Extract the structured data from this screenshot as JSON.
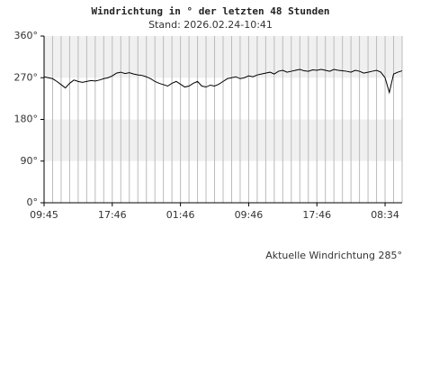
{
  "chart_data": {
    "type": "line",
    "title": "Windrichtung in ° der letzten 48 Stunden",
    "subtitle": "Stand: 2026.02.24-10:41",
    "annotation": "Aktuelle Windrichtung 285°",
    "categories": [
      "09:45",
      null,
      null,
      null,
      null,
      null,
      null,
      null,
      null,
      null,
      null,
      null,
      null,
      null,
      null,
      null,
      "17:46",
      null,
      null,
      null,
      null,
      null,
      null,
      null,
      null,
      null,
      null,
      null,
      null,
      null,
      null,
      null,
      "01:46",
      null,
      null,
      null,
      null,
      null,
      null,
      null,
      null,
      null,
      null,
      null,
      null,
      null,
      null,
      null,
      "09:46",
      null,
      null,
      null,
      null,
      null,
      null,
      null,
      null,
      null,
      null,
      null,
      null,
      null,
      null,
      null,
      "17:46",
      null,
      null,
      null,
      null,
      null,
      null,
      null,
      null,
      null,
      null,
      null,
      null,
      null,
      null,
      null,
      "08:34",
      null,
      null,
      null,
      null
    ],
    "values": [
      272,
      270,
      268,
      262,
      255,
      248,
      258,
      265,
      262,
      260,
      262,
      264,
      263,
      265,
      268,
      270,
      274,
      280,
      282,
      279,
      281,
      278,
      276,
      275,
      272,
      268,
      262,
      258,
      255,
      252,
      258,
      262,
      256,
      250,
      252,
      258,
      262,
      252,
      250,
      254,
      252,
      256,
      262,
      268,
      270,
      272,
      268,
      270,
      274,
      272,
      276,
      278,
      280,
      282,
      278,
      284,
      286,
      282,
      284,
      286,
      288,
      285,
      284,
      287,
      286,
      288,
      286,
      284,
      288,
      286,
      285,
      284,
      282,
      286,
      284,
      280,
      282,
      284,
      286,
      282,
      270,
      238,
      278,
      282,
      285
    ],
    "color": "#000000",
    "ylim": [
      0,
      360
    ],
    "yticks": [
      {
        "value": 0,
        "label": "0°"
      },
      {
        "value": 90,
        "label": "90°"
      },
      {
        "value": 180,
        "label": "180°"
      },
      {
        "value": 270,
        "label": "270°"
      },
      {
        "value": 360,
        "label": "360°"
      }
    ],
    "shaded_bands": [
      [
        90,
        180
      ],
      [
        270,
        360
      ]
    ],
    "grid": true
  }
}
